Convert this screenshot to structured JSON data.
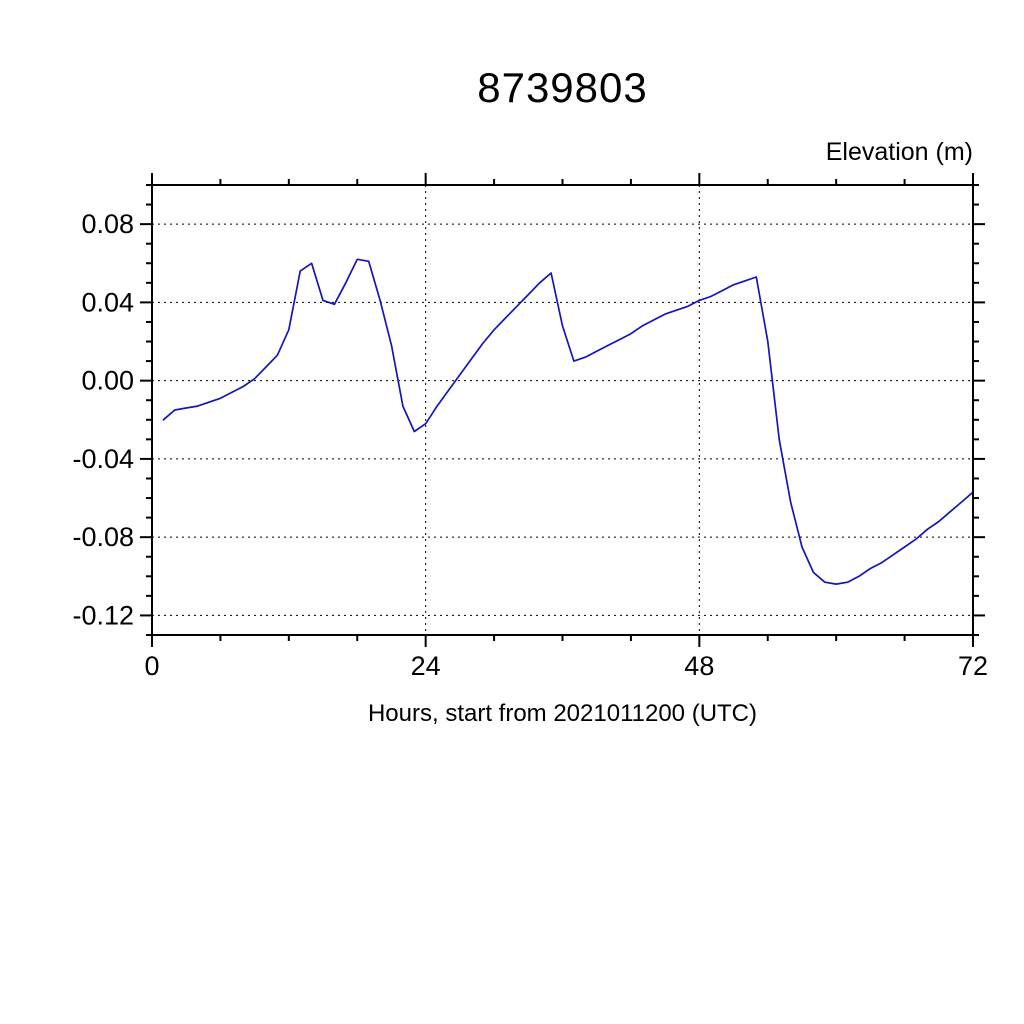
{
  "chart_data": {
    "type": "line",
    "title": "8739803",
    "ylabel": "Elevation (m)",
    "xlabel": "Hours, start from 2021011200 (UTC)",
    "xlim": [
      0,
      72
    ],
    "ylim": [
      -0.13,
      0.1
    ],
    "xticks": [
      0,
      24,
      48,
      72
    ],
    "xtick_labels": [
      "0",
      "24",
      "48",
      "72"
    ],
    "x_minor_step": 6,
    "yticks": [
      0.08,
      0.04,
      0.0,
      -0.04,
      -0.08,
      -0.12
    ],
    "ytick_labels": [
      "0.08",
      "0.04",
      "0.00",
      "-0.04",
      "-0.08",
      "-0.12"
    ],
    "y_minor_step": 0.01,
    "grid": true,
    "legend": "none",
    "line_color": "#1515bb",
    "frame_color": "#000000",
    "series": [
      {
        "name": "elevation",
        "x": [
          1,
          2,
          3,
          4,
          5,
          6,
          7,
          8,
          9,
          10,
          11,
          12,
          13,
          14,
          15,
          16,
          17,
          18,
          19,
          20,
          21,
          22,
          23,
          24,
          25,
          26,
          27,
          28,
          29,
          30,
          31,
          32,
          33,
          34,
          35,
          36,
          37,
          38,
          39,
          40,
          41,
          42,
          43,
          44,
          45,
          46,
          47,
          48,
          49,
          50,
          51,
          52,
          53,
          54,
          55,
          56,
          57,
          58,
          59,
          60,
          61,
          62,
          63,
          64,
          65,
          66,
          67,
          68,
          69,
          70,
          71,
          72
        ],
        "y": [
          -0.02,
          -0.015,
          -0.014,
          -0.013,
          -0.011,
          -0.009,
          -0.006,
          -0.003,
          0.001,
          0.007,
          0.013,
          0.026,
          0.056,
          0.06,
          0.041,
          0.039,
          0.05,
          0.062,
          0.061,
          0.041,
          0.018,
          -0.013,
          -0.026,
          -0.022,
          -0.013,
          -0.005,
          0.003,
          0.011,
          0.019,
          0.026,
          0.032,
          0.038,
          0.044,
          0.05,
          0.055,
          0.028,
          0.01,
          0.012,
          0.015,
          0.018,
          0.021,
          0.024,
          0.028,
          0.031,
          0.034,
          0.036,
          0.038,
          0.041,
          0.043,
          0.046,
          0.049,
          0.051,
          0.053,
          0.02,
          -0.03,
          -0.062,
          -0.085,
          -0.098,
          -0.103,
          -0.104,
          -0.103,
          -0.1,
          -0.096,
          -0.093,
          -0.089,
          -0.085,
          -0.081,
          -0.076,
          -0.072,
          -0.067,
          -0.062,
          -0.057
        ]
      }
    ]
  }
}
